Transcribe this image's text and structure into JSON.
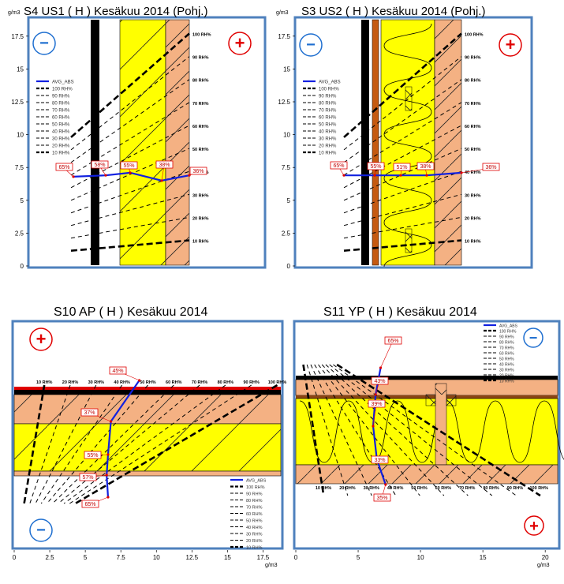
{
  "chart_data": [
    {
      "type": "line",
      "title": "S4 US1 ( H ) Kesäkuu 2014 (Pohj.)",
      "xlabel": "",
      "ylabel": "g/m3",
      "ylim": [
        0,
        18.75
      ],
      "y_ticks": [
        "0",
        "2.5",
        "5",
        "7.5",
        "10",
        "12.5",
        "15",
        "17.5"
      ],
      "rh_labels": [
        "100 RH%",
        "90 RH%",
        "80 RH%",
        "70 RH%",
        "60 RH%",
        "50 RH%",
        "40 RH%",
        "30 RH%",
        "20 RH%",
        "10 RH%"
      ],
      "legend": [
        "AVG_ABS",
        "100 RH%",
        "90 RH%",
        "80 RH%",
        "70 RH%",
        "60 RH%",
        "50 RH%",
        "40 RH%",
        "30 RH%",
        "20 RH%",
        "10 RH%"
      ],
      "series": [
        {
          "name": "AVG_ABS",
          "values": [
            6.8,
            6.9,
            7.1,
            6.5,
            6.9
          ]
        }
      ],
      "point_labels": [
        "65%",
        "58%",
        "55%",
        "38%",
        "36%"
      ],
      "cold_symbol": "−",
      "warm_symbol": "+",
      "colors": {
        "avg": "#1020e0",
        "insulation": "#ffff00",
        "board": "#f4b183",
        "frame": "#4f81bd"
      }
    },
    {
      "type": "line",
      "title": "S3 US2 ( H ) Kesäkuu 2014 (Pohj.)",
      "xlabel": "",
      "ylabel": "g/m3",
      "ylim": [
        0,
        18.75
      ],
      "y_ticks": [
        "0",
        "2.5",
        "5",
        "7.5",
        "10",
        "12.5",
        "15",
        "17.5"
      ],
      "rh_labels": [
        "100 RH%",
        "90 RH%",
        "80 RH%",
        "70 RH%",
        "60 RH%",
        "50 RH%",
        "40 RH%",
        "30 RH%",
        "20 RH%",
        "10 RH%"
      ],
      "legend": [
        "AVG_ABS",
        "100 RH%",
        "90 RH%",
        "80 RH%",
        "70 RH%",
        "60 RH%",
        "50 RH%",
        "40 RH%",
        "30 RH%",
        "20 RH%",
        "10 RH%"
      ],
      "series": [
        {
          "name": "AVG_ABS",
          "values": [
            6.9,
            6.9,
            6.9,
            6.9,
            7.1
          ]
        }
      ],
      "point_labels": [
        "65%",
        "55%",
        "51%",
        "38%",
        "36%"
      ],
      "cold_symbol": "−",
      "warm_symbol": "+"
    },
    {
      "type": "line",
      "title": "S10 AP ( H ) Kesäkuu 2014",
      "xlabel": "g/m3",
      "ylabel": "",
      "xlim": [
        0,
        18.75
      ],
      "x_ticks": [
        "0",
        "2.5",
        "5",
        "7.5",
        "10",
        "12.5",
        "15",
        "17.5"
      ],
      "rh_labels": [
        "10 RH%",
        "20 RH%",
        "30 RH%",
        "40 RH%",
        "50 RH%",
        "60 RH%",
        "70 RH%",
        "80 RH%",
        "90 RH%",
        "100 RH%"
      ],
      "legend": [
        "AVG_ABS",
        "100 RH%",
        "90 RH%",
        "80 RH%",
        "70 RH%",
        "60 RH%",
        "50 RH%",
        "40 RH%",
        "30 RH%",
        "20 RH%",
        "10 RH%"
      ],
      "series": [
        {
          "name": "AVG_ABS",
          "values": [
            8.8,
            6.8,
            6.6,
            6.5,
            6.6
          ]
        }
      ],
      "point_labels": [
        "45%",
        "37%",
        "55%",
        "57%",
        "65%"
      ],
      "cold_symbol": "−",
      "warm_symbol": "+"
    },
    {
      "type": "line",
      "title": "S11 YP ( H ) Kesäkuu 2014",
      "xlabel": "g/m3",
      "ylabel": "",
      "xlim": [
        0,
        21
      ],
      "x_ticks": [
        "0",
        "5",
        "10",
        "15",
        "20"
      ],
      "rh_labels": [
        "10 RH%",
        "20 RH%",
        "30 RH%",
        "40 RH%",
        "50 RH%",
        "60 RH%",
        "70 RH%",
        "80 RH%",
        "90 RH%",
        "100 RH%"
      ],
      "legend": [
        "AVG_ABS",
        "100 RH%",
        "90 RH%",
        "80 RH%",
        "70 RH%",
        "60 RH%",
        "50 RH%",
        "40 RH%",
        "30 RH%",
        "20 RH%",
        "10 RH%"
      ],
      "series": [
        {
          "name": "AVG_ABS",
          "values": [
            6.8,
            6.4,
            6.2,
            6.5,
            7.2
          ]
        }
      ],
      "point_labels": [
        "65%",
        "43%",
        "39%",
        "33%",
        "35%"
      ],
      "cold_symbol": "−",
      "warm_symbol": "+"
    }
  ]
}
